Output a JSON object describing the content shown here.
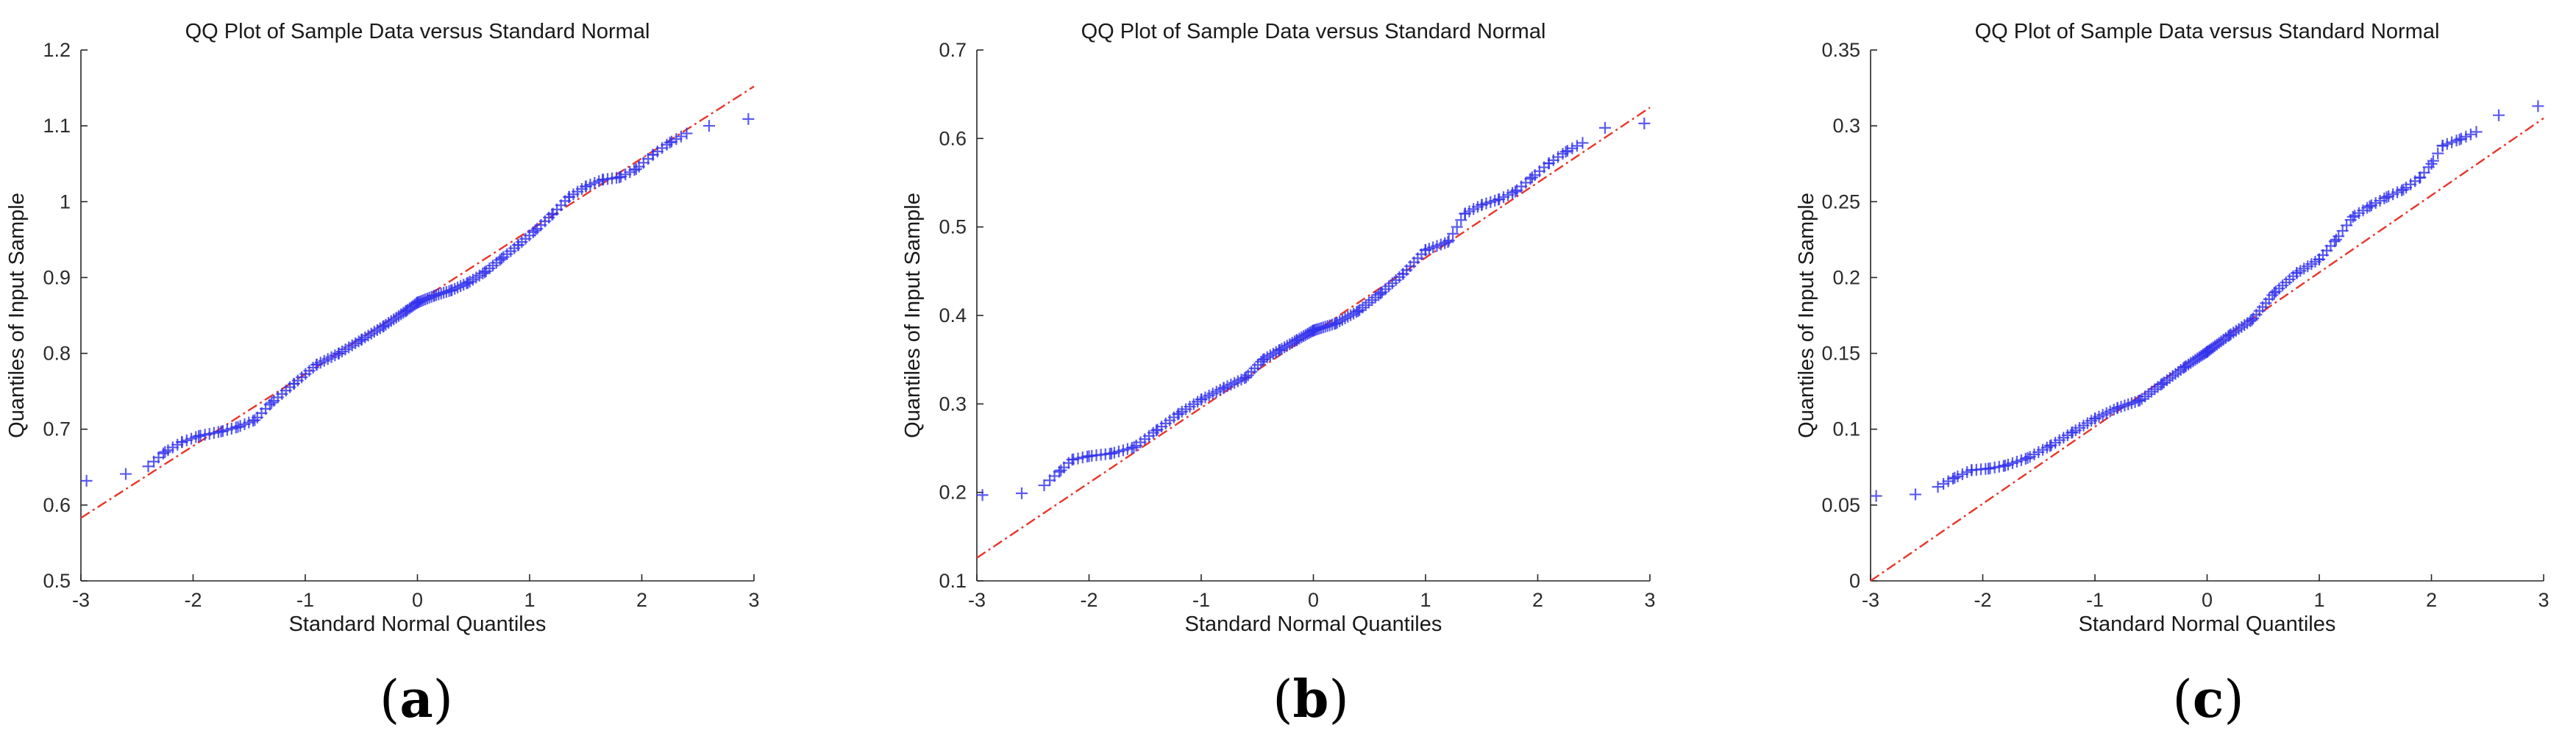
{
  "colors": {
    "marker": "#3333ee",
    "reference_line": "#e8352a",
    "axis": "#262626"
  },
  "chart_data": [
    {
      "type": "scatter",
      "panel": "a",
      "caption": {
        "open": "(",
        "letter": "a",
        "close": ")"
      },
      "title": "QQ Plot of Sample Data versus Standard Normal",
      "xlabel": "Standard Normal Quantiles",
      "ylabel": "Quantiles of Input Sample",
      "xlim": [
        -3,
        3
      ],
      "ylim": [
        0.5,
        1.2
      ],
      "xticks": [
        "-3",
        "-2",
        "-1",
        "0",
        "1",
        "2",
        "3"
      ],
      "yticks": [
        "0.5",
        "0.6",
        "0.7",
        "0.8",
        "0.9",
        "1",
        "1.1",
        "1.2"
      ],
      "reference_line": {
        "x": [
          -3,
          3
        ],
        "y": [
          0.583,
          1.152
        ]
      },
      "curve": {
        "x": [
          -2.95,
          -2.6,
          -2.4,
          -2.25,
          -2.1,
          -1.95,
          -1.75,
          -1.6,
          -1.45,
          -1.3,
          -1.1,
          -0.9,
          -0.7,
          -0.5,
          -0.3,
          -0.1,
          0.0,
          0.15,
          0.3,
          0.45,
          0.6,
          0.75,
          0.9,
          1.05,
          1.2,
          1.35,
          1.5,
          1.65,
          1.8,
          1.95,
          2.1,
          2.25,
          2.4,
          2.6,
          2.95
        ],
        "y": [
          0.632,
          0.641,
          0.651,
          0.67,
          0.683,
          0.691,
          0.697,
          0.703,
          0.712,
          0.735,
          0.76,
          0.785,
          0.8,
          0.818,
          0.836,
          0.856,
          0.867,
          0.876,
          0.883,
          0.893,
          0.907,
          0.925,
          0.943,
          0.962,
          0.983,
          1.006,
          1.02,
          1.029,
          1.032,
          1.043,
          1.062,
          1.078,
          1.09,
          1.1,
          1.109
        ]
      }
    },
    {
      "type": "scatter",
      "panel": "b",
      "caption": {
        "open": "(",
        "letter": "b",
        "close": ")"
      },
      "title": "QQ Plot of Sample Data versus Standard Normal",
      "xlabel": "Standard Normal Quantiles",
      "ylabel": "Quantiles of Input Sample",
      "xlim": [
        -3,
        3
      ],
      "ylim": [
        0.1,
        0.7
      ],
      "xticks": [
        "-3",
        "-2",
        "-1",
        "0",
        "1",
        "2",
        "3"
      ],
      "yticks": [
        "0.1",
        "0.2",
        "0.3",
        "0.4",
        "0.5",
        "0.6",
        "0.7"
      ],
      "reference_line": {
        "x": [
          -3,
          3
        ],
        "y": [
          0.126,
          0.635
        ]
      },
      "curve": {
        "x": [
          -2.95,
          -2.6,
          -2.4,
          -2.25,
          -2.15,
          -2.0,
          -1.8,
          -1.6,
          -1.4,
          -1.2,
          -1.0,
          -0.8,
          -0.6,
          -0.45,
          -0.3,
          -0.15,
          0.0,
          0.2,
          0.4,
          0.6,
          0.8,
          1.0,
          1.2,
          1.35,
          1.5,
          1.65,
          1.8,
          1.95,
          2.1,
          2.25,
          2.4,
          2.6,
          2.95
        ],
        "y": [
          0.197,
          0.199,
          0.208,
          0.225,
          0.237,
          0.241,
          0.244,
          0.251,
          0.27,
          0.289,
          0.305,
          0.318,
          0.33,
          0.35,
          0.361,
          0.372,
          0.383,
          0.391,
          0.405,
          0.425,
          0.447,
          0.474,
          0.483,
          0.515,
          0.525,
          0.531,
          0.54,
          0.556,
          0.572,
          0.585,
          0.595,
          0.612,
          0.617
        ]
      }
    },
    {
      "type": "scatter",
      "panel": "c",
      "caption": {
        "open": "(",
        "letter": "c",
        "close": ")"
      },
      "title": "QQ Plot of Sample Data versus Standard Normal",
      "xlabel": "Standard Normal Quantiles",
      "ylabel": "Quantiles of Input Sample",
      "xlim": [
        -3,
        3
      ],
      "ylim": [
        0,
        0.35
      ],
      "xticks": [
        "-3",
        "-2",
        "-1",
        "0",
        "1",
        "2",
        "3"
      ],
      "yticks": [
        "0",
        "0.05",
        "0.1",
        "0.15",
        "0.2",
        "0.25",
        "0.3",
        "0.35"
      ],
      "reference_line": {
        "x": [
          -3,
          3
        ],
        "y": [
          0.0,
          0.305
        ]
      },
      "curve": {
        "x": [
          -2.95,
          -2.6,
          -2.4,
          -2.25,
          -2.1,
          -1.95,
          -1.8,
          -1.6,
          -1.4,
          -1.2,
          -1.0,
          -0.8,
          -0.6,
          -0.4,
          -0.2,
          0.0,
          0.2,
          0.4,
          0.6,
          0.8,
          1.0,
          1.15,
          1.3,
          1.45,
          1.6,
          1.75,
          1.9,
          2.0,
          2.1,
          2.25,
          2.4,
          2.6,
          2.95
        ],
        "y": [
          0.056,
          0.057,
          0.062,
          0.068,
          0.073,
          0.074,
          0.076,
          0.081,
          0.089,
          0.098,
          0.107,
          0.114,
          0.119,
          0.13,
          0.141,
          0.151,
          0.162,
          0.172,
          0.19,
          0.203,
          0.212,
          0.225,
          0.24,
          0.247,
          0.253,
          0.258,
          0.266,
          0.275,
          0.287,
          0.291,
          0.296,
          0.307,
          0.313
        ]
      }
    }
  ]
}
